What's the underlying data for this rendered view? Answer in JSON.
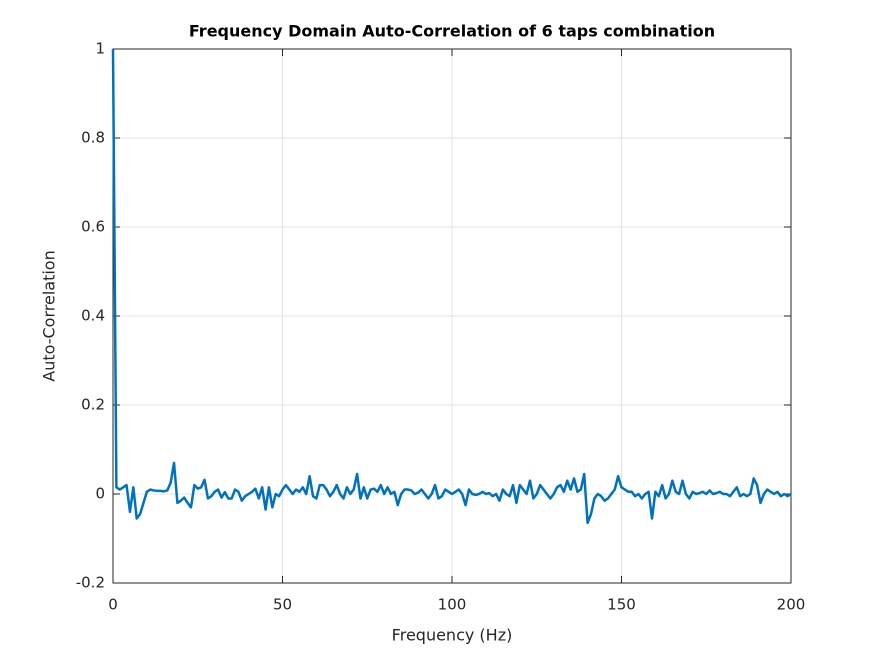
{
  "chart_data": {
    "type": "line",
    "title": "Frequency Domain Auto-Correlation of 6 taps combination",
    "xlabel": "Frequency (Hz)",
    "ylabel": "Auto-Correlation",
    "color": "#0072bd",
    "grid": true,
    "xlim": [
      0,
      200
    ],
    "xticks": [
      0,
      50,
      100,
      150,
      200
    ],
    "ylim": [
      -0.2,
      1
    ],
    "yticks": [
      -0.2,
      0,
      0.2,
      0.4,
      0.6,
      0.8,
      1
    ],
    "x": [
      0,
      1,
      2,
      3,
      4,
      5,
      6,
      7,
      8,
      9,
      10,
      11,
      12,
      13,
      14,
      15,
      16,
      17,
      18,
      19,
      20,
      21,
      22,
      23,
      24,
      25,
      26,
      27,
      28,
      29,
      30,
      31,
      32,
      33,
      34,
      35,
      36,
      37,
      38,
      39,
      40,
      41,
      42,
      43,
      44,
      45,
      46,
      47,
      48,
      49,
      50,
      51,
      52,
      53,
      54,
      55,
      56,
      57,
      58,
      59,
      60,
      61,
      62,
      63,
      64,
      65,
      66,
      67,
      68,
      69,
      70,
      71,
      72,
      73,
      74,
      75,
      76,
      77,
      78,
      79,
      80,
      81,
      82,
      83,
      84,
      85,
      86,
      87,
      88,
      89,
      90,
      91,
      92,
      93,
      94,
      95,
      96,
      97,
      98,
      99,
      100,
      101,
      102,
      103,
      104,
      105,
      106,
      107,
      108,
      109,
      110,
      111,
      112,
      113,
      114,
      115,
      116,
      117,
      118,
      119,
      120,
      121,
      122,
      123,
      124,
      125,
      126,
      127,
      128,
      129,
      130,
      131,
      132,
      133,
      134,
      135,
      136,
      137,
      138,
      139,
      140,
      141,
      142,
      143,
      144,
      145,
      146,
      147,
      148,
      149,
      150,
      151,
      152,
      153,
      154,
      155,
      156,
      157,
      158,
      159,
      160,
      161,
      162,
      163,
      164,
      165,
      166,
      167,
      168,
      169,
      170,
      171,
      172,
      173,
      174,
      175,
      176,
      177,
      178,
      179,
      180,
      181,
      182,
      183,
      184,
      185,
      186,
      187,
      188,
      189,
      190,
      191,
      192,
      193,
      194,
      195,
      196,
      197,
      198,
      199,
      200
    ],
    "values": [
      1,
      0.015,
      0.01,
      0.015,
      0.02,
      -0.04,
      0.015,
      -0.055,
      -0.045,
      -0.02,
      0.005,
      0.01,
      0.008,
      0.007,
      0.007,
      0.006,
      0.008,
      0.025,
      0.07,
      -0.02,
      -0.015,
      -0.008,
      -0.02,
      -0.03,
      0.02,
      0.012,
      0.015,
      0.032,
      -0.01,
      -0.005,
      0.005,
      0.01,
      -0.008,
      0.004,
      -0.01,
      -0.01,
      0.01,
      0.005,
      -0.015,
      -0.005,
      0,
      0.005,
      0.012,
      -0.01,
      0.015,
      -0.035,
      0.015,
      -0.03,
      0,
      -0.005,
      0.01,
      0.02,
      0.01,
      0,
      0.01,
      0.005,
      0.015,
      0,
      0.04,
      -0.005,
      -0.01,
      0.02,
      0.02,
      0.01,
      -0.005,
      0.005,
      0.02,
      0,
      -0.01,
      0.015,
      0,
      0.01,
      0.045,
      -0.01,
      0.015,
      -0.01,
      0.01,
      0.012,
      0.005,
      0.02,
      0,
      0.015,
      0,
      0.005,
      -0.025,
      0,
      0.01,
      0.01,
      0.008,
      0,
      0.003,
      0.01,
      0,
      -0.01,
      0,
      0.02,
      -0.01,
      -0.005,
      0.01,
      0.005,
      0,
      0.005,
      0.01,
      0,
      -0.025,
      0.01,
      0,
      -0.002,
      0,
      0.005,
      0,
      0.002,
      -0.005,
      0,
      -0.015,
      0.01,
      0,
      -0.005,
      0.02,
      -0.02,
      0.02,
      0.01,
      0,
      0.03,
      -0.01,
      0,
      0.02,
      0.01,
      0,
      -0.01,
      0,
      0.015,
      0.02,
      0.005,
      0.03,
      0.01,
      0.035,
      0.005,
      0.01,
      0.045,
      -0.065,
      -0.045,
      -0.01,
      0,
      -0.005,
      -0.015,
      -0.01,
      0,
      0.01,
      0.04,
      0.015,
      0.01,
      0.005,
      0.005,
      -0.005,
      0,
      -0.01,
      0,
      0.005,
      -0.055,
      0.005,
      -0.005,
      0.02,
      -0.01,
      0,
      0.03,
      0.005,
      0,
      0.03,
      0,
      -0.01,
      0.005,
      0,
      0.002,
      0.005,
      0,
      0.008,
      0,
      0.002,
      0.005,
      0,
      0,
      -0.005,
      0.005,
      0.015,
      -0.005,
      0,
      -0.005,
      0,
      0.035,
      0.02,
      -0.02,
      0,
      0.01,
      0.005,
      0,
      0.005,
      -0.005,
      0,
      -0.005,
      0
    ]
  }
}
